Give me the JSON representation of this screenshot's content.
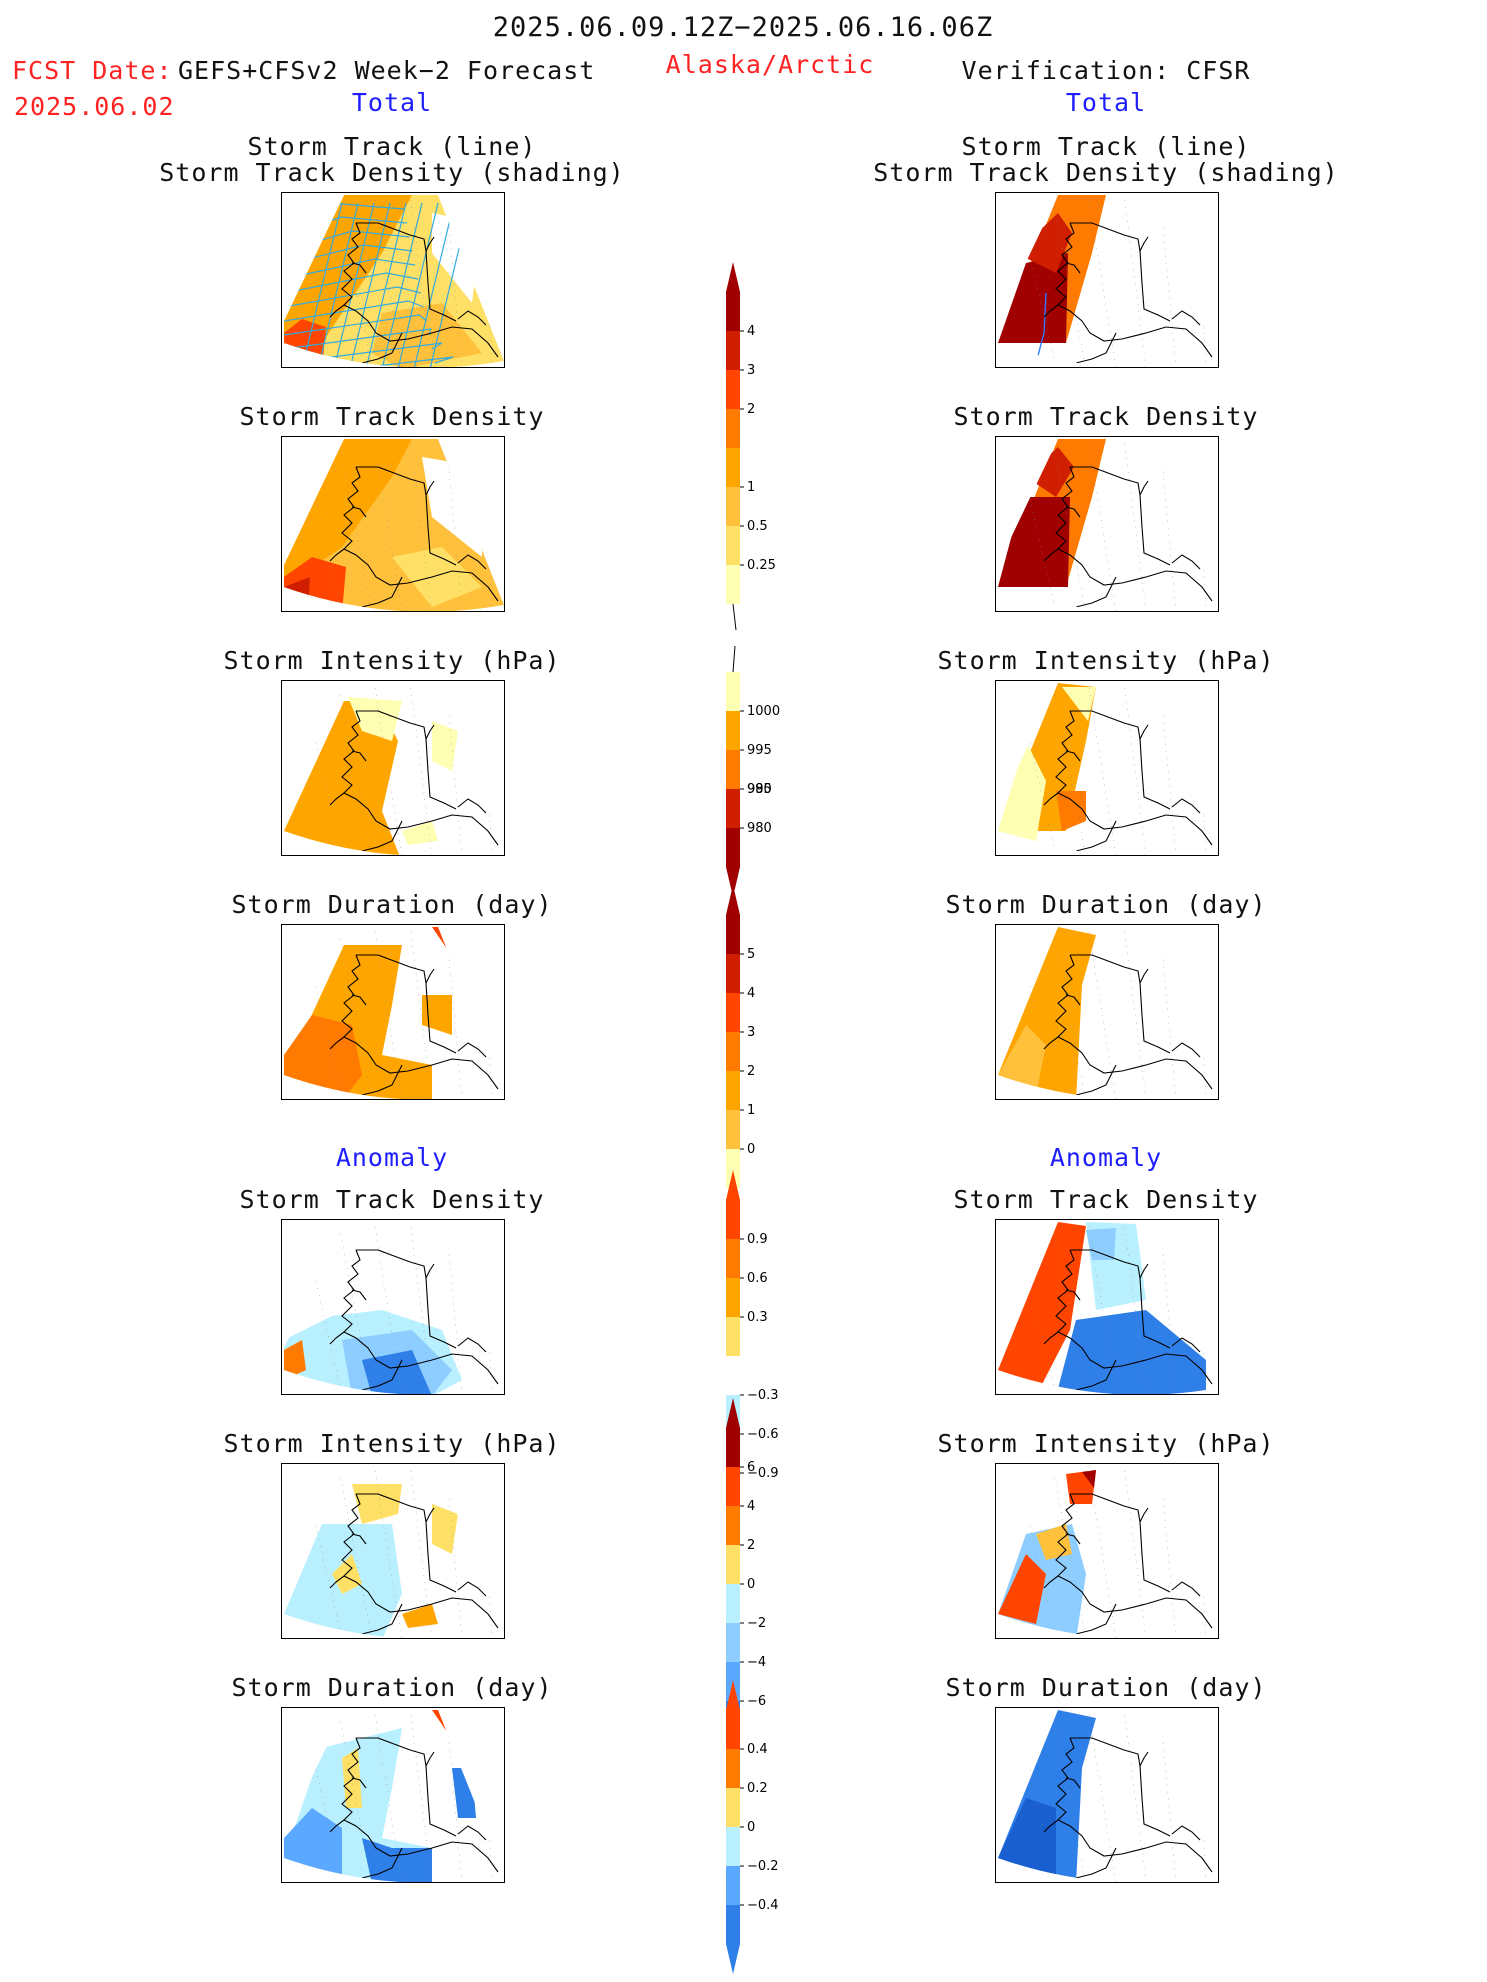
{
  "header": {
    "period": "2025.06.09.12Z−2025.06.16.06Z",
    "fcst_label": "FCST Date:",
    "model": "GEFS+CFSv2 Week−2 Forecast",
    "fcst_date": "2025.06.02",
    "region": "Alaska/Arctic",
    "verification": "Verification: CFSR"
  },
  "sections": {
    "total_left": "Total",
    "total_right": "Total",
    "anomaly_left": "Anomaly",
    "anomaly_right": "Anomaly"
  },
  "panel_titles": {
    "track_line": "Storm Track (line)",
    "track_density_shading": "Storm Track Density (shading)",
    "density": "Storm Track Density",
    "intensity": "Storm Intensity (hPa)",
    "duration": "Storm Duration (day)"
  },
  "colorbars": {
    "density": [
      "4",
      "3",
      "2",
      "1",
      "0.5",
      "0.25"
    ],
    "intensity": [
      "1000",
      "995",
      "990",
      "985",
      "980"
    ],
    "duration": [
      "5",
      "4",
      "3",
      "2",
      "1",
      "0"
    ],
    "density_anom": [
      "0.9",
      "0.6",
      "0.3",
      "−0.3",
      "−0.6",
      "−0.9"
    ],
    "intensity_anom": [
      "6",
      "4",
      "2",
      "0",
      "−2",
      "−4",
      "−6"
    ],
    "duration_anom": [
      "0.4",
      "0.2",
      "0",
      "−0.2",
      "−0.4"
    ]
  },
  "colors": {
    "warm": [
      "#ffffb3",
      "#ffe066",
      "#ffc13b",
      "#ffa500",
      "#ff7a00",
      "#ff4500",
      "#d01e00",
      "#a00000"
    ],
    "cool": [
      "#b8f0ff",
      "#8ecdff",
      "#5aa8ff",
      "#2f7fe8",
      "#1a5fd0"
    ],
    "track_line": "#33aadd",
    "title_red": "#ff2222",
    "section_blue": "#1e1eff"
  }
}
